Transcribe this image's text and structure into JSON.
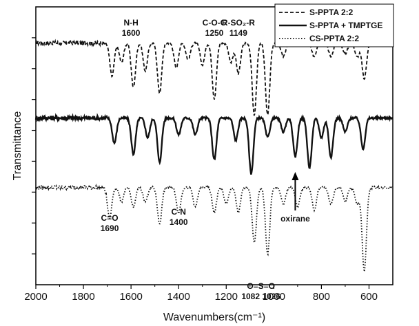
{
  "chart_data": {
    "type": "line",
    "title": "",
    "xlabel": "Wavenumbers(cm⁻¹)",
    "ylabel": "Transmittance",
    "xlim": [
      2000,
      500
    ],
    "x_reversed": true,
    "x_ticks": [
      2000,
      1800,
      1600,
      1400,
      1200,
      1000,
      800,
      600
    ],
    "y_ticks_labeled": false,
    "grid": false,
    "legend_position": "top-right",
    "series": [
      {
        "name": "S-PPTA 2:2",
        "line_style": "dashed",
        "baseline": 0.87,
        "bands": [
          {
            "x": 1680,
            "depth": 0.12
          },
          {
            "x": 1640,
            "depth": 0.07
          },
          {
            "x": 1590,
            "depth": 0.16
          },
          {
            "x": 1540,
            "depth": 0.1
          },
          {
            "x": 1480,
            "depth": 0.18
          },
          {
            "x": 1410,
            "depth": 0.09
          },
          {
            "x": 1360,
            "depth": 0.06
          },
          {
            "x": 1300,
            "depth": 0.08
          },
          {
            "x": 1250,
            "depth": 0.2
          },
          {
            "x": 1180,
            "depth": 0.07
          },
          {
            "x": 1149,
            "depth": 0.11
          },
          {
            "x": 1082,
            "depth": 0.26
          },
          {
            "x": 1026,
            "depth": 0.26
          },
          {
            "x": 960,
            "depth": 0.05
          },
          {
            "x": 830,
            "depth": 0.05
          },
          {
            "x": 760,
            "depth": 0.05
          },
          {
            "x": 700,
            "depth": 0.04
          },
          {
            "x": 650,
            "depth": 0.05
          },
          {
            "x": 620,
            "depth": 0.13
          }
        ]
      },
      {
        "name": "S-PPTA + TMPTGE",
        "line_style": "solid",
        "baseline": 0.6,
        "bands": [
          {
            "x": 1670,
            "depth": 0.09
          },
          {
            "x": 1590,
            "depth": 0.13
          },
          {
            "x": 1530,
            "depth": 0.07
          },
          {
            "x": 1480,
            "depth": 0.16
          },
          {
            "x": 1400,
            "depth": 0.06
          },
          {
            "x": 1330,
            "depth": 0.06
          },
          {
            "x": 1250,
            "depth": 0.15
          },
          {
            "x": 1160,
            "depth": 0.08
          },
          {
            "x": 1095,
            "depth": 0.2
          },
          {
            "x": 1026,
            "depth": 0.07
          },
          {
            "x": 960,
            "depth": 0.05
          },
          {
            "x": 910,
            "depth": 0.14
          },
          {
            "x": 850,
            "depth": 0.18
          },
          {
            "x": 800,
            "depth": 0.07
          },
          {
            "x": 760,
            "depth": 0.14
          },
          {
            "x": 700,
            "depth": 0.05
          },
          {
            "x": 625,
            "depth": 0.11
          }
        ]
      },
      {
        "name": "CS-PPTA 2:2",
        "line_style": "dotted",
        "baseline": 0.35,
        "bands": [
          {
            "x": 1690,
            "depth": 0.11
          },
          {
            "x": 1640,
            "depth": 0.05
          },
          {
            "x": 1590,
            "depth": 0.07
          },
          {
            "x": 1540,
            "depth": 0.05
          },
          {
            "x": 1480,
            "depth": 0.13
          },
          {
            "x": 1400,
            "depth": 0.09
          },
          {
            "x": 1330,
            "depth": 0.07
          },
          {
            "x": 1250,
            "depth": 0.09
          },
          {
            "x": 1200,
            "depth": 0.06
          },
          {
            "x": 1149,
            "depth": 0.09
          },
          {
            "x": 1082,
            "depth": 0.2
          },
          {
            "x": 1026,
            "depth": 0.24
          },
          {
            "x": 960,
            "depth": 0.06
          },
          {
            "x": 900,
            "depth": 0.07
          },
          {
            "x": 830,
            "depth": 0.08
          },
          {
            "x": 760,
            "depth": 0.06
          },
          {
            "x": 700,
            "depth": 0.05
          },
          {
            "x": 650,
            "depth": 0.06
          },
          {
            "x": 620,
            "depth": 0.3
          }
        ]
      }
    ],
    "annotations": [
      {
        "id": "nh",
        "lines": [
          "N-H",
          "1600"
        ],
        "x": 1600
      },
      {
        "id": "coc",
        "lines": [
          "C-O-C",
          "1250"
        ],
        "x": 1250
      },
      {
        "id": "rso2r",
        "lines": [
          "R-SO₂-R",
          "1149"
        ],
        "x": 1149
      },
      {
        "id": "co",
        "lines": [
          "C=O",
          "1690"
        ],
        "x": 1690
      },
      {
        "id": "cn",
        "lines": [
          "C-N",
          "1400"
        ],
        "x": 1400
      },
      {
        "id": "oso",
        "lines": [
          "O=S=O",
          "1082  1026"
        ],
        "x": 1054
      },
      {
        "id": "oxirane",
        "lines": [
          "oxirane"
        ],
        "x": 910,
        "arrow": true
      }
    ]
  }
}
